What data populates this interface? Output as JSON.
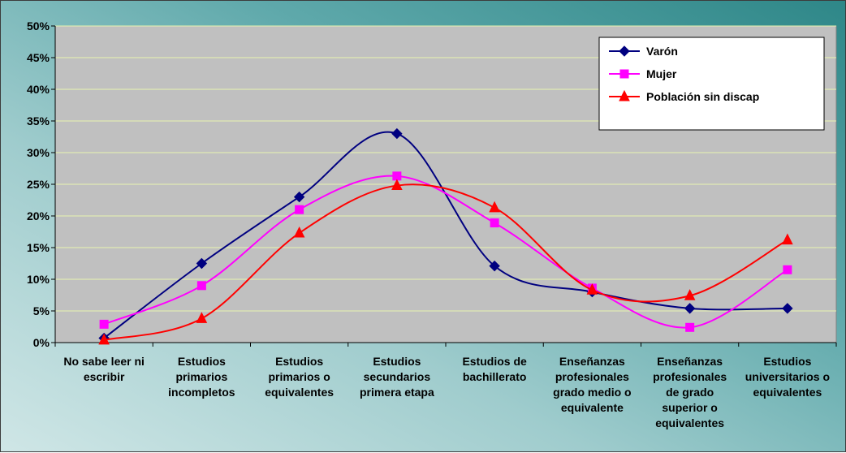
{
  "chart_data": {
    "type": "line",
    "title": "",
    "xlabel": "",
    "ylabel": "",
    "ylim": [
      0,
      50
    ],
    "y_ticks": [
      "0%",
      "5%",
      "10%",
      "15%",
      "20%",
      "25%",
      "30%",
      "35%",
      "40%",
      "45%",
      "50%"
    ],
    "grid": "horizontal",
    "legend_position": "top-right",
    "categories": [
      [
        "No sabe leer ni",
        "escribir"
      ],
      [
        "Estudios",
        "primarios",
        "incompletos"
      ],
      [
        "Estudios",
        "primarios o",
        "equivalentes"
      ],
      [
        "Estudios",
        "secundarios",
        "primera etapa"
      ],
      [
        "Estudios de",
        "bachillerato"
      ],
      [
        "Enseñanzas",
        "profesionales",
        "grado medio o",
        "equivalente"
      ],
      [
        "Enseñanzas",
        "profesionales",
        "de grado",
        "superior o",
        "equivalentes"
      ],
      [
        "Estudios",
        "universitarios o",
        "equivalentes"
      ]
    ],
    "series": [
      {
        "name": "Varón",
        "color": "#000080",
        "marker": "diamond",
        "values": [
          0.7,
          12.5,
          23.0,
          33.0,
          12.1,
          8.0,
          5.4,
          5.4
        ]
      },
      {
        "name": "Mujer",
        "color": "#ff00ff",
        "marker": "square",
        "values": [
          2.9,
          9.0,
          21.0,
          26.3,
          18.9,
          8.6,
          2.4,
          11.5
        ]
      },
      {
        "name": "Población sin discap",
        "color": "#ff0000",
        "marker": "triangle",
        "values": [
          0.4,
          3.8,
          17.3,
          24.8,
          21.3,
          8.3,
          7.4,
          16.2
        ]
      }
    ]
  },
  "colors": {
    "plot_bg": "#c0c0c0",
    "grid": "#e8f4b0"
  }
}
